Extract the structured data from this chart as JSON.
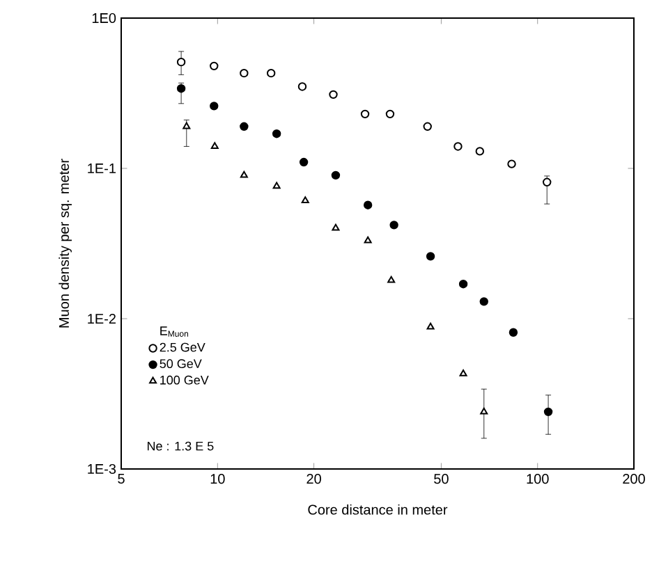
{
  "chart_data": {
    "type": "scatter",
    "xlabel": "Core distance in meter",
    "ylabel": "Muon density per sq. meter",
    "log": "xy",
    "xlim": [
      5,
      200
    ],
    "ylim": [
      0.001,
      1
    ],
    "xticks": [
      5,
      10,
      20,
      50,
      100,
      200
    ],
    "yticks": [
      {
        "value": 0.001,
        "label": "1E-3"
      },
      {
        "value": 0.01,
        "label": "1E-2"
      },
      {
        "value": 0.1,
        "label": "1E-1"
      },
      {
        "value": 1,
        "label": "1E0"
      }
    ],
    "grid": false,
    "legend": "bottom left",
    "legend_title": "E$_{Muon}$",
    "annotations": [
      "Ne : 1.3 E 5"
    ],
    "series": [
      {
        "name": "2.5 GeV",
        "color": "#000000",
        "marker": "circle",
        "x": [
          7.7,
          9.75,
          12.1,
          14.7,
          18.4,
          23,
          28.9,
          34.6,
          45.3,
          56.4,
          66,
          83,
          107
        ],
        "values": [
          0.51,
          0.48,
          0.43,
          0.43,
          0.35,
          0.31,
          0.23,
          0.23,
          0.19,
          0.14,
          0.13,
          0.107,
          0.081
        ],
        "errors": [
          [
            0.42,
            0.6
          ],
          null,
          null,
          null,
          null,
          null,
          null,
          null,
          null,
          null,
          null,
          null,
          [
            0.058,
            0.089
          ]
        ]
      },
      {
        "name": "50 GeV",
        "color": "#000000",
        "marker": "circle",
        "x": [
          7.7,
          9.75,
          12.1,
          15.3,
          18.6,
          23.4,
          29.5,
          35.6,
          46.3,
          58.6,
          68,
          84,
          108
        ],
        "values": [
          0.34,
          0.26,
          0.19,
          0.17,
          0.11,
          0.09,
          0.057,
          0.042,
          0.026,
          0.017,
          0.013,
          0.0081,
          0.0024
        ],
        "errors": [
          [
            0.27,
            0.37
          ],
          null,
          null,
          null,
          null,
          null,
          null,
          null,
          null,
          null,
          null,
          null,
          [
            0.0017,
            0.0031
          ]
        ]
      },
      {
        "name": "100 GeV",
        "color": "#000000",
        "marker": "triangle",
        "x": [
          8.0,
          9.8,
          12.1,
          15.3,
          18.8,
          23.4,
          29.5,
          34.9,
          46.3,
          58.6,
          68
        ],
        "values": [
          0.19,
          0.14,
          0.09,
          0.076,
          0.061,
          0.04,
          0.033,
          0.018,
          0.0088,
          0.0043,
          0.0024
        ],
        "errors": [
          [
            0.14,
            0.21
          ],
          null,
          null,
          null,
          null,
          null,
          null,
          null,
          null,
          null,
          [
            0.0016,
            0.0034
          ]
        ]
      }
    ]
  }
}
